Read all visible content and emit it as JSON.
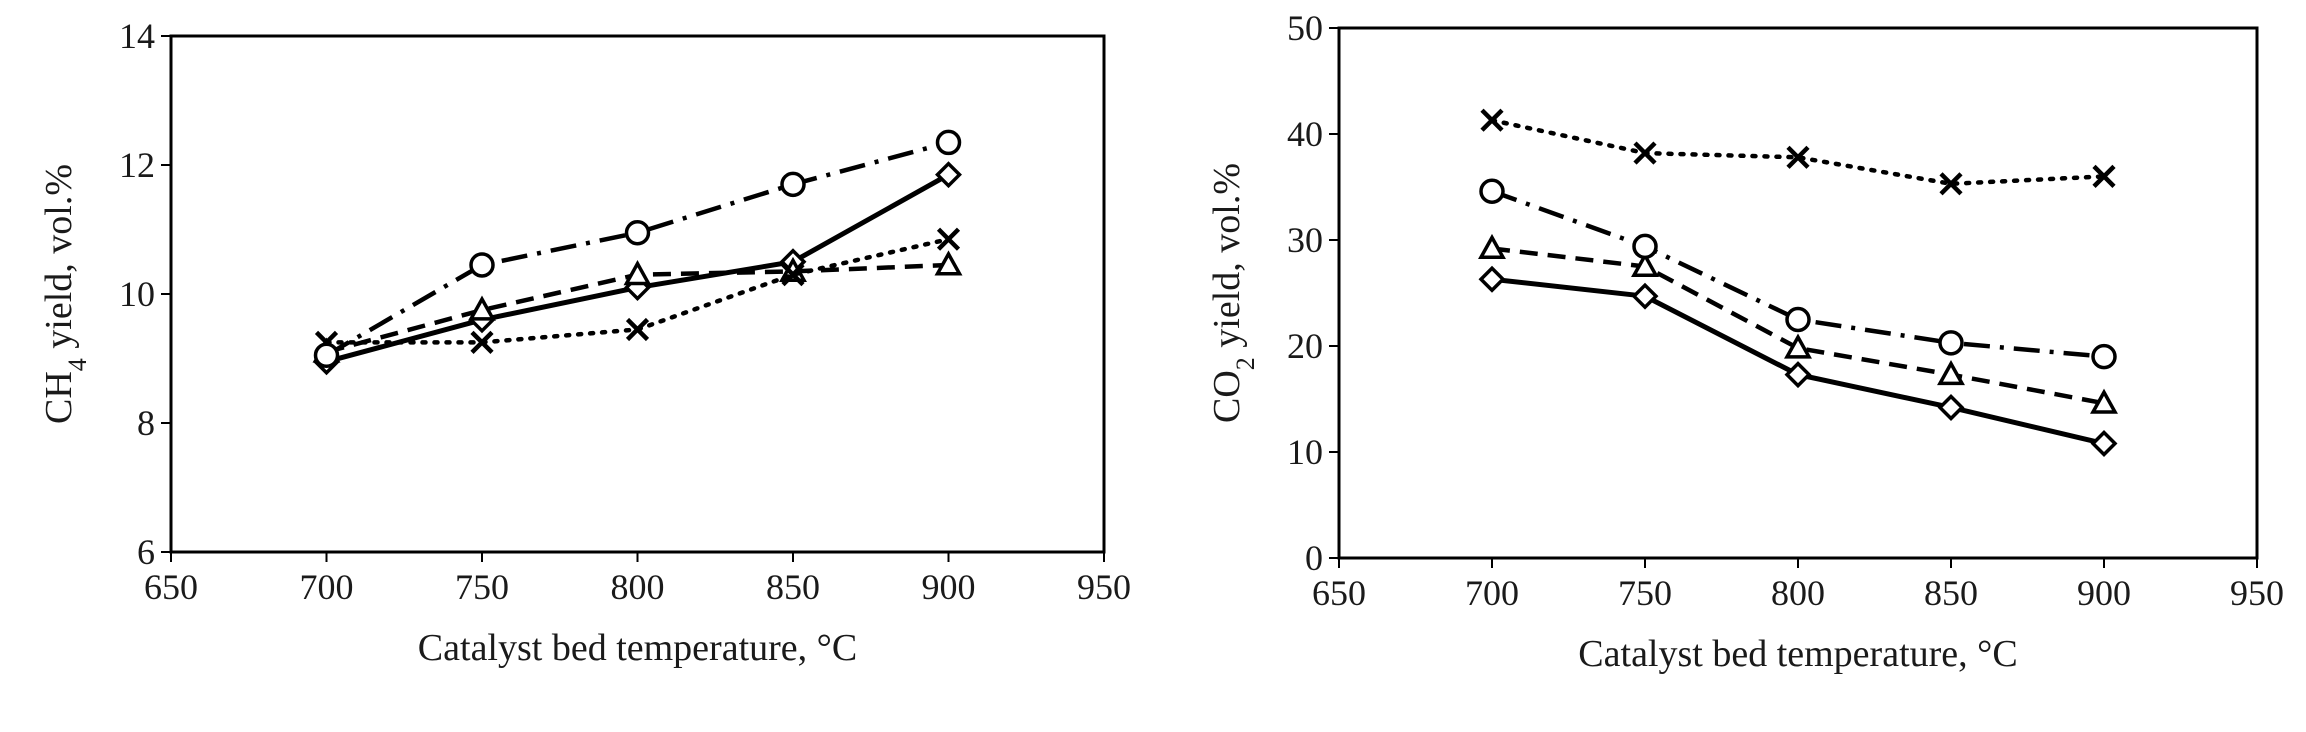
{
  "chart_data": [
    {
      "type": "line",
      "xlabel": "Catalyst bed temperature, °C",
      "ylabel_parts": [
        "CH",
        "4",
        " yield, vol.%"
      ],
      "xlim": [
        650,
        950
      ],
      "ylim": [
        6,
        14
      ],
      "xticks": [
        650,
        700,
        750,
        800,
        850,
        900,
        950
      ],
      "yticks": [
        6,
        8,
        10,
        12,
        14
      ],
      "grid": false,
      "x": [
        700,
        750,
        800,
        850,
        900
      ],
      "series": [
        {
          "marker": "diamond",
          "line": "solid",
          "values": [
            8.95,
            9.6,
            10.1,
            10.5,
            11.85
          ]
        },
        {
          "marker": "triangle",
          "line": "dashed",
          "values": [
            9.1,
            9.75,
            10.3,
            10.35,
            10.45
          ]
        },
        {
          "marker": "cross",
          "line": "dotted",
          "values": [
            9.25,
            9.25,
            9.45,
            10.3,
            10.85
          ]
        },
        {
          "marker": "circle",
          "line": "dashdot",
          "values": [
            9.05,
            10.45,
            10.95,
            11.7,
            12.35
          ]
        }
      ]
    },
    {
      "type": "line",
      "xlabel": "Catalyst bed temperature, °C",
      "ylabel_parts": [
        "CO",
        "2",
        " yield, vol.%"
      ],
      "xlim": [
        650,
        950
      ],
      "ylim": [
        0,
        50
      ],
      "xticks": [
        650,
        700,
        750,
        800,
        850,
        900,
        950
      ],
      "yticks": [
        0,
        10,
        20,
        30,
        40,
        50
      ],
      "grid": false,
      "x": [
        700,
        750,
        800,
        850,
        900
      ],
      "series": [
        {
          "marker": "diamond",
          "line": "solid",
          "values": [
            26.3,
            24.7,
            17.3,
            14.2,
            10.8
          ]
        },
        {
          "marker": "triangle",
          "line": "dashed",
          "values": [
            29.2,
            27.5,
            19.8,
            17.3,
            14.6
          ]
        },
        {
          "marker": "cross",
          "line": "dotted",
          "values": [
            41.3,
            38.2,
            37.8,
            35.3,
            36.0
          ]
        },
        {
          "marker": "circle",
          "line": "dashdot",
          "values": [
            34.6,
            29.4,
            22.5,
            20.3,
            19.0
          ]
        }
      ]
    }
  ]
}
